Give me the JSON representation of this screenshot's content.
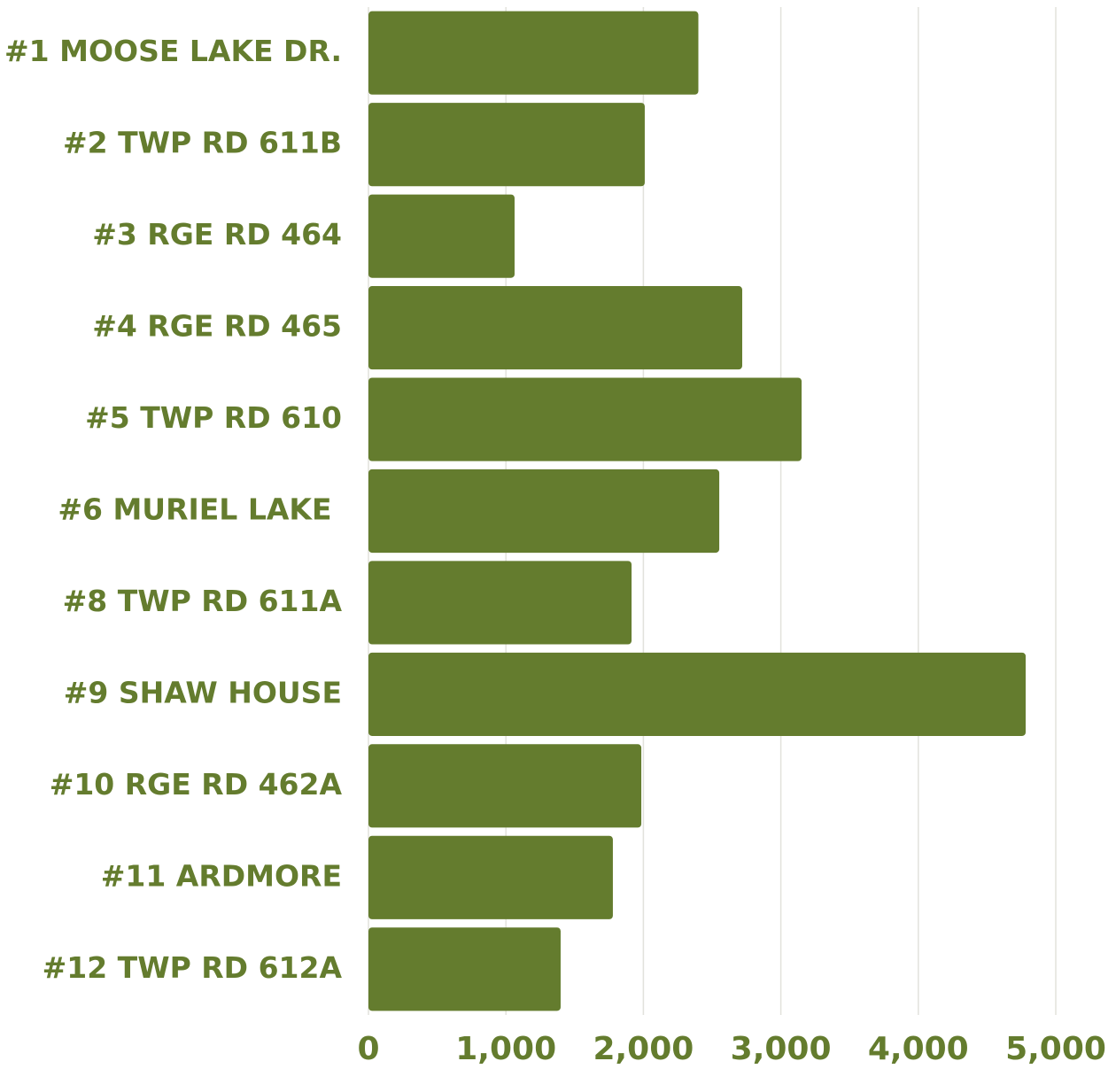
{
  "chart_data": {
    "type": "bar",
    "orientation": "horizontal",
    "categories": [
      "#1 MOOSE LAKE DR.",
      "#2 TWP RD 611B",
      "#3 RGE RD 464",
      "#4 RGE RD 465",
      "#5 TWP RD 610",
      "#6 MURIEL LAKE ",
      "#8 TWP RD 611A",
      "#9 SHAW HOUSE",
      "#10 RGE RD 462A",
      "#11 ARDMORE",
      "#12 TWP RD 612A"
    ],
    "values": [
      2400,
      2010,
      1063,
      2719,
      3151,
      2552,
      1914,
      4781,
      1985,
      1778,
      1398
    ],
    "color": "#647c2e",
    "xlim": [
      0,
      5000
    ],
    "xticks": [
      0,
      {
        "value": 1000,
        "label": "1,000"
      },
      {
        "value": 2000,
        "label": "2,000"
      },
      {
        "value": 3000,
        "label": "3,000"
      },
      {
        "value": 4000,
        "label": "4,000"
      },
      {
        "value": 5000,
        "label": "5,000"
      }
    ],
    "grid": true
  }
}
